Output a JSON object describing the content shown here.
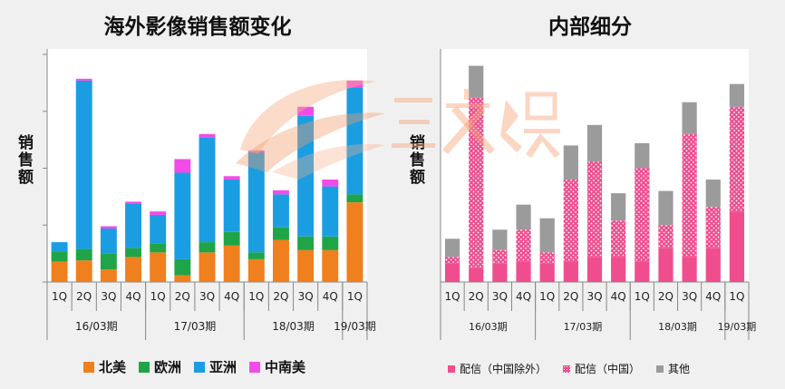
{
  "chart_data": [
    {
      "type": "bar",
      "stacked": true,
      "title": "海外影像销售额变化",
      "ylabel": "销售额",
      "categories": [
        "1Q",
        "2Q",
        "3Q",
        "4Q",
        "1Q",
        "2Q",
        "3Q",
        "4Q",
        "1Q",
        "2Q",
        "3Q",
        "4Q",
        "1Q"
      ],
      "groups": [
        {
          "label": "16/03期",
          "count": 4
        },
        {
          "label": "17/03期",
          "count": 4
        },
        {
          "label": "18/03期",
          "count": 4
        },
        {
          "label": "19/03期",
          "count": 1
        }
      ],
      "ylim": [
        0,
        100
      ],
      "grid": false,
      "legend_position": "bottom",
      "series": [
        {
          "name": "北美",
          "color": "#f07f1d",
          "values": [
            9,
            9.5,
            5.5,
            11,
            13,
            3,
            13,
            16,
            10,
            18.5,
            14,
            14,
            35
          ]
        },
        {
          "name": "欧洲",
          "color": "#1fa548",
          "values": [
            4.5,
            5,
            7,
            4,
            4,
            7,
            4.5,
            6,
            3,
            5.5,
            6,
            6,
            3.5
          ]
        },
        {
          "name": "亚洲",
          "color": "#1b9de2",
          "values": [
            4,
            74,
            11,
            19.5,
            12.5,
            38,
            46,
            23,
            44,
            14.5,
            53,
            22,
            47
          ]
        },
        {
          "name": "中南美",
          "color": "#f14ce8",
          "values": [
            0,
            0.8,
            1,
            0.8,
            1.5,
            6,
            1.5,
            1.5,
            0.8,
            1.8,
            4,
            3,
            3
          ]
        }
      ]
    },
    {
      "type": "bar",
      "stacked": true,
      "title": "内部细分",
      "ylabel": "销售额",
      "categories": [
        "1Q",
        "2Q",
        "3Q",
        "4Q",
        "1Q",
        "2Q",
        "3Q",
        "4Q",
        "1Q",
        "2Q",
        "3Q",
        "4Q",
        "1Q"
      ],
      "groups": [
        {
          "label": "16/03期",
          "count": 4
        },
        {
          "label": "17/03期",
          "count": 4
        },
        {
          "label": "18/03期",
          "count": 4
        },
        {
          "label": "19/03期",
          "count": 1
        }
      ],
      "ylim": [
        0,
        100
      ],
      "grid": false,
      "legend_position": "bottom",
      "series": [
        {
          "name": "配信（中国除外）",
          "color": "#f04d8e",
          "pattern": "solid",
          "values": [
            8,
            6,
            8,
            9,
            8,
            9,
            11,
            11,
            9,
            15,
            11,
            15,
            31
          ]
        },
        {
          "name": "配信（中国）",
          "color": "#f04d8e",
          "pattern": "dotted",
          "values": [
            3,
            75,
            6,
            14,
            5,
            36,
            42,
            16,
            41,
            10,
            54,
            18,
            46
          ]
        },
        {
          "name": "其他",
          "color": "#9b9b9b",
          "pattern": "solid",
          "values": [
            8,
            14,
            9,
            11,
            15,
            15,
            16,
            12,
            11,
            15,
            14,
            12,
            10
          ]
        }
      ]
    }
  ]
}
